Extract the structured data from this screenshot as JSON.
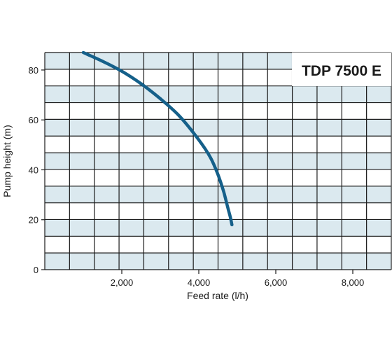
{
  "chart_data": {
    "type": "line",
    "title": "TDP 7500 E",
    "xlabel": "Feed rate (l/h)",
    "ylabel": "Pump height (m)",
    "xlim": [
      0,
      9000
    ],
    "ylim": [
      0,
      87
    ],
    "x_ticks": [
      2000,
      4000,
      6000,
      8000
    ],
    "x_tick_labels": [
      "2,000",
      "4,000",
      "6,000",
      "8,000"
    ],
    "y_ticks": [
      0,
      20,
      40,
      60,
      80
    ],
    "y_tick_labels": [
      "0",
      "20",
      "40",
      "60",
      "80"
    ],
    "grid": true,
    "series": [
      {
        "x": [
          1000,
          1500,
          2000,
          2500,
          3000,
          3500,
          4000,
          4300,
          4500,
          4650,
          4750,
          4820,
          4860
        ],
        "y": [
          87,
          83.5,
          79.5,
          74.5,
          68.5,
          61.5,
          52,
          45,
          38,
          31,
          25,
          21,
          18
        ]
      }
    ],
    "colors": {
      "curve": "#15608a",
      "band": "#dbe9ef",
      "grid": "#1a1a1a"
    }
  }
}
